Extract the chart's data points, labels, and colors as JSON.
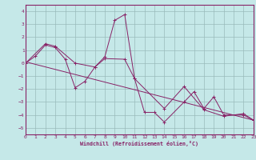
{
  "xlabel": "Windchill (Refroidissement éolien,°C)",
  "xlim": [
    0,
    23
  ],
  "ylim": [
    -5.5,
    4.5
  ],
  "yticks": [
    -5,
    -4,
    -3,
    -2,
    -1,
    0,
    1,
    2,
    3,
    4
  ],
  "xticks": [
    0,
    1,
    2,
    3,
    4,
    5,
    6,
    7,
    8,
    9,
    10,
    11,
    12,
    13,
    14,
    15,
    16,
    17,
    18,
    19,
    20,
    21,
    22,
    23
  ],
  "bg_color": "#c5e8e8",
  "line_color": "#882266",
  "grid_color": "#99bbbb",
  "lines": [
    {
      "x": [
        0,
        1,
        2,
        3,
        4,
        5,
        6,
        7,
        8,
        9,
        10,
        11,
        12,
        13,
        14,
        16,
        17,
        18,
        19,
        20,
        22,
        23
      ],
      "y": [
        0,
        0.55,
        1.4,
        1.2,
        0.3,
        -1.9,
        -1.4,
        -0.3,
        0.5,
        3.3,
        3.75,
        -1.2,
        -3.8,
        -3.8,
        -4.55,
        -3.0,
        -2.2,
        -3.5,
        -2.6,
        -4.0,
        -4.0,
        -4.4
      ]
    },
    {
      "x": [
        0,
        2,
        3,
        5,
        7,
        8,
        10,
        11,
        14,
        16,
        18,
        20,
        22,
        23
      ],
      "y": [
        0,
        1.5,
        1.3,
        0.0,
        -0.3,
        0.35,
        0.3,
        -1.2,
        -3.5,
        -1.8,
        -3.6,
        -4.1,
        -3.9,
        -4.4
      ]
    },
    {
      "x": [
        0,
        23
      ],
      "y": [
        0.1,
        -4.4
      ]
    }
  ]
}
